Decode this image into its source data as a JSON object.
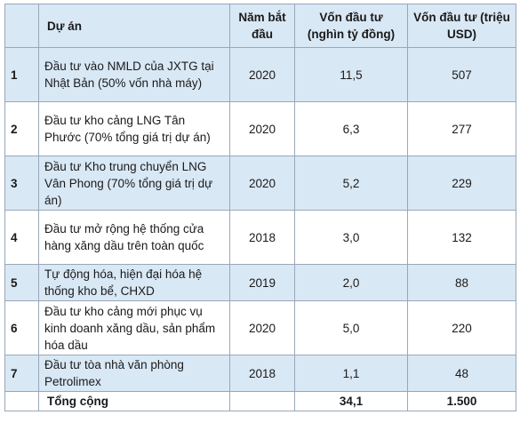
{
  "table": {
    "headers": {
      "project": "Dự án",
      "year": "Năm bắt đầu",
      "capital_vnd": "Vốn đầu tư (nghìn tỷ đồng)",
      "capital_usd": "Vốn đầu tư (triệu USD)"
    },
    "rows": [
      {
        "no": "1",
        "project": "Đầu tư vào NMLD của JXTG tại Nhật Bản (50% vốn nhà máy)",
        "year": "2020",
        "vnd": "11,5",
        "usd": "507"
      },
      {
        "no": "2",
        "project": "Đầu tư kho cảng LNG Tân Phước (70% tổng giá trị dự án)",
        "year": "2020",
        "vnd": "6,3",
        "usd": "277"
      },
      {
        "no": "3",
        "project": "Đầu tư Kho trung chuyển LNG Vân Phong (70% tổng giá trị dự án)",
        "year": "2020",
        "vnd": "5,2",
        "usd": "229"
      },
      {
        "no": "4",
        "project": "Đầu tư mở rộng hệ thống cửa hàng xăng dầu trên toàn quốc",
        "year": "2018",
        "vnd": "3,0",
        "usd": "132"
      },
      {
        "no": "5",
        "project": "Tự động hóa, hiện đại hóa hệ thống kho bể, CHXD",
        "year": "2019",
        "vnd": "2,0",
        "usd": "88"
      },
      {
        "no": "6",
        "project": "Đầu tư kho cảng mới phục vụ kinh doanh xăng dầu, sản phẩm hóa dầu",
        "year": "2020",
        "vnd": "5,0",
        "usd": "220"
      },
      {
        "no": "7",
        "project": "Đầu tư tòa nhà văn phòng Petrolimex",
        "year": "2018",
        "vnd": "1,1",
        "usd": "48"
      }
    ],
    "total": {
      "label": "Tổng cộng",
      "vnd": "34,1",
      "usd": "1.500"
    }
  }
}
